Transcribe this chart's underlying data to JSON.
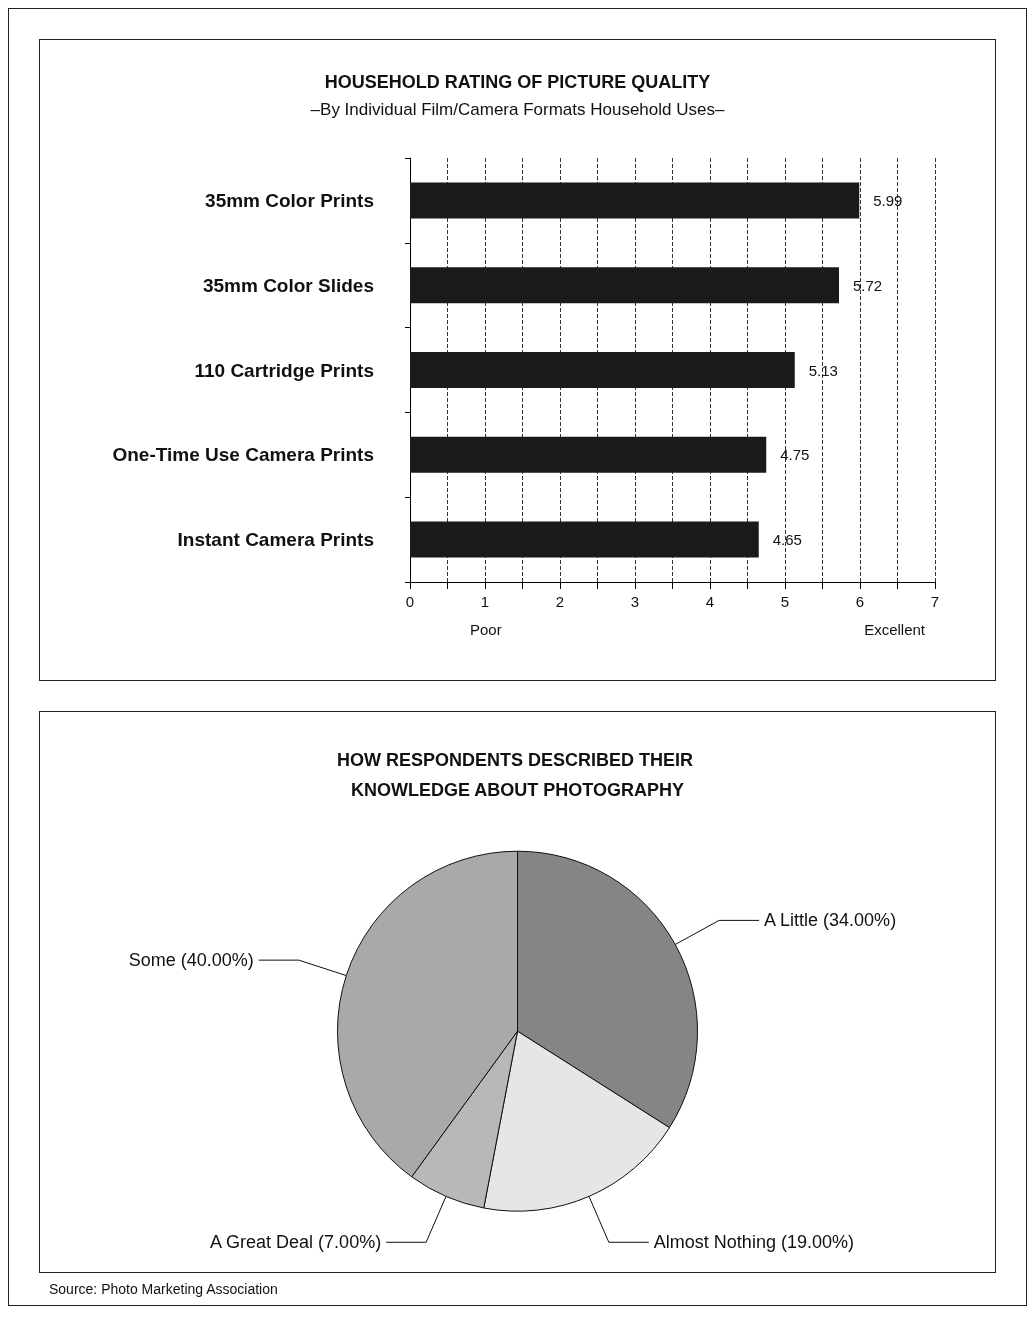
{
  "chart_data": [
    {
      "type": "bar",
      "orientation": "horizontal",
      "title": "HOUSEHOLD RATING OF PICTURE QUALITY",
      "subtitle": "–By Individual Film/Camera Formats Household Uses–",
      "categories": [
        "35mm Color Prints",
        "35mm Color Slides",
        "110 Cartridge Prints",
        "One-Time Use Camera Prints",
        "Instant Camera Prints"
      ],
      "values": [
        5.99,
        5.72,
        5.13,
        4.75,
        4.65
      ],
      "color": "#1a1a1a",
      "data_labels": true,
      "xlim": [
        0,
        7
      ],
      "xticks": [
        0,
        {
          "value": 0.5,
          "label": null
        },
        1,
        {
          "value": 1.5,
          "label": null
        },
        2,
        {
          "value": 2.5,
          "label": null
        },
        3,
        {
          "value": 3.5,
          "label": null
        },
        4,
        {
          "value": 4.5,
          "label": null
        },
        5,
        {
          "value": 5.5,
          "label": null
        },
        6,
        {
          "value": 6.5,
          "label": null
        },
        7
      ],
      "grid": "x",
      "legend": false,
      "annotations": [
        "Poor",
        "Excellent"
      ]
    },
    {
      "type": "pie",
      "title": "HOW RESPONDENTS DESCRIBED THEIR KNOWLEDGE ABOUT PHOTOGRAPHY",
      "categories": [
        "A Little (34.00%)",
        "Almost Nothing (19.00%)",
        "A Great Deal (7.00%)",
        "Some (40.00%)"
      ],
      "values": [
        34,
        19,
        7,
        40
      ],
      "colors": [
        "#858587",
        "#e6e6e8",
        "#b8b8ba",
        "#a9a9ac"
      ],
      "legend": false,
      "annotations": [
        "Source: Photo Marketing Association"
      ]
    }
  ]
}
